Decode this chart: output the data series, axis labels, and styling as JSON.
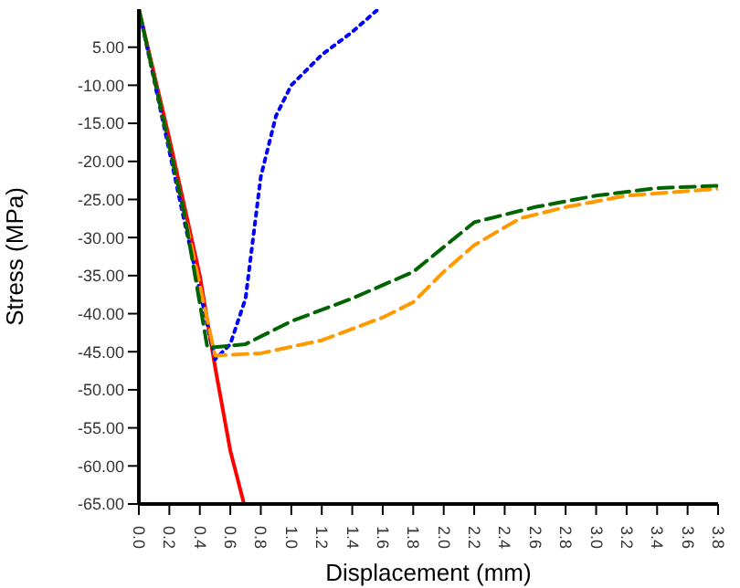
{
  "chart_data": {
    "type": "line",
    "xlabel": "Displacement (mm)",
    "ylabel": "Stress (MPa)",
    "xlim": [
      0,
      3.8
    ],
    "ylim": [
      -65,
      0
    ],
    "xticks": [
      {
        "value": 0,
        "label": "0.0"
      },
      {
        "value": 0.2,
        "label": "0.2"
      },
      {
        "value": 0.4,
        "label": "0.4"
      },
      {
        "value": 0.6,
        "label": "0.6"
      },
      {
        "value": 0.8,
        "label": "0.8"
      },
      {
        "value": 1,
        "label": "1.0"
      },
      {
        "value": 1.2,
        "label": "1.2"
      },
      {
        "value": 1.4,
        "label": "1.4"
      },
      {
        "value": 1.6,
        "label": "1.6"
      },
      {
        "value": 1.8,
        "label": "1.8"
      },
      {
        "value": 2,
        "label": "2.0"
      },
      {
        "value": 2.2,
        "label": "2.2"
      },
      {
        "value": 2.4,
        "label": "2.4"
      },
      {
        "value": 2.6,
        "label": "2.6"
      },
      {
        "value": 2.8,
        "label": "2.8"
      },
      {
        "value": 3,
        "label": "3.0"
      },
      {
        "value": 3.2,
        "label": "3.2"
      },
      {
        "value": 3.4,
        "label": "3.4"
      },
      {
        "value": 3.6,
        "label": "3.6"
      },
      {
        "value": 3.8,
        "label": "3.8"
      }
    ],
    "yticks": [
      {
        "value": -5,
        "label": "5.00"
      },
      {
        "value": -10,
        "label": "-10.00"
      },
      {
        "value": -15,
        "label": "-15.00"
      },
      {
        "value": -20,
        "label": "-20.00"
      },
      {
        "value": -25,
        "label": "-25.00"
      },
      {
        "value": -30,
        "label": "-30.00"
      },
      {
        "value": -35,
        "label": "-35.00"
      },
      {
        "value": -40,
        "label": "-40.00"
      },
      {
        "value": -45,
        "label": "-45.00"
      },
      {
        "value": -50,
        "label": "-50.00"
      },
      {
        "value": -55,
        "label": "-55.00"
      },
      {
        "value": -60,
        "label": "-60.00"
      },
      {
        "value": -65,
        "label": "-65.00"
      }
    ],
    "grid": false,
    "legend": false,
    "marker": "none",
    "series": [
      {
        "color": "#ff0000",
        "line_style": "solid",
        "x": [
          0,
          0.2,
          0.4,
          0.5,
          0.6,
          0.69
        ],
        "values": [
          0,
          -17,
          -35,
          -47,
          -58,
          -65
        ]
      },
      {
        "color": "#0000ff",
        "line_style": "dotted",
        "x": [
          0,
          0.3,
          0.5,
          0.6,
          0.7,
          0.75,
          0.8,
          0.9,
          1.0,
          1.2,
          1.4,
          1.57
        ],
        "values": [
          0,
          -28,
          -46,
          -44,
          -38,
          -30,
          -22,
          -14,
          -10,
          -6,
          -3,
          0
        ]
      },
      {
        "color": "#ff9900",
        "line_style": "dashed",
        "x": [
          0,
          0.3,
          0.5,
          0.8,
          1.2,
          1.6,
          1.8,
          2.0,
          2.2,
          2.5,
          2.8,
          3.2,
          3.8
        ],
        "values": [
          0,
          -27,
          -45.5,
          -45.2,
          -43.5,
          -40.5,
          -38.5,
          -34.5,
          -31,
          -27.5,
          -26,
          -24.5,
          -23.6
        ]
      },
      {
        "color": "#006400",
        "line_style": "dashed",
        "x": [
          0,
          0.3,
          0.45,
          0.7,
          1.0,
          1.4,
          1.8,
          2.2,
          2.6,
          3.0,
          3.4,
          3.8
        ],
        "values": [
          0,
          -27,
          -44.5,
          -44,
          -41,
          -38,
          -34.5,
          -28,
          -26,
          -24.5,
          -23.5,
          -23.2
        ]
      }
    ]
  }
}
